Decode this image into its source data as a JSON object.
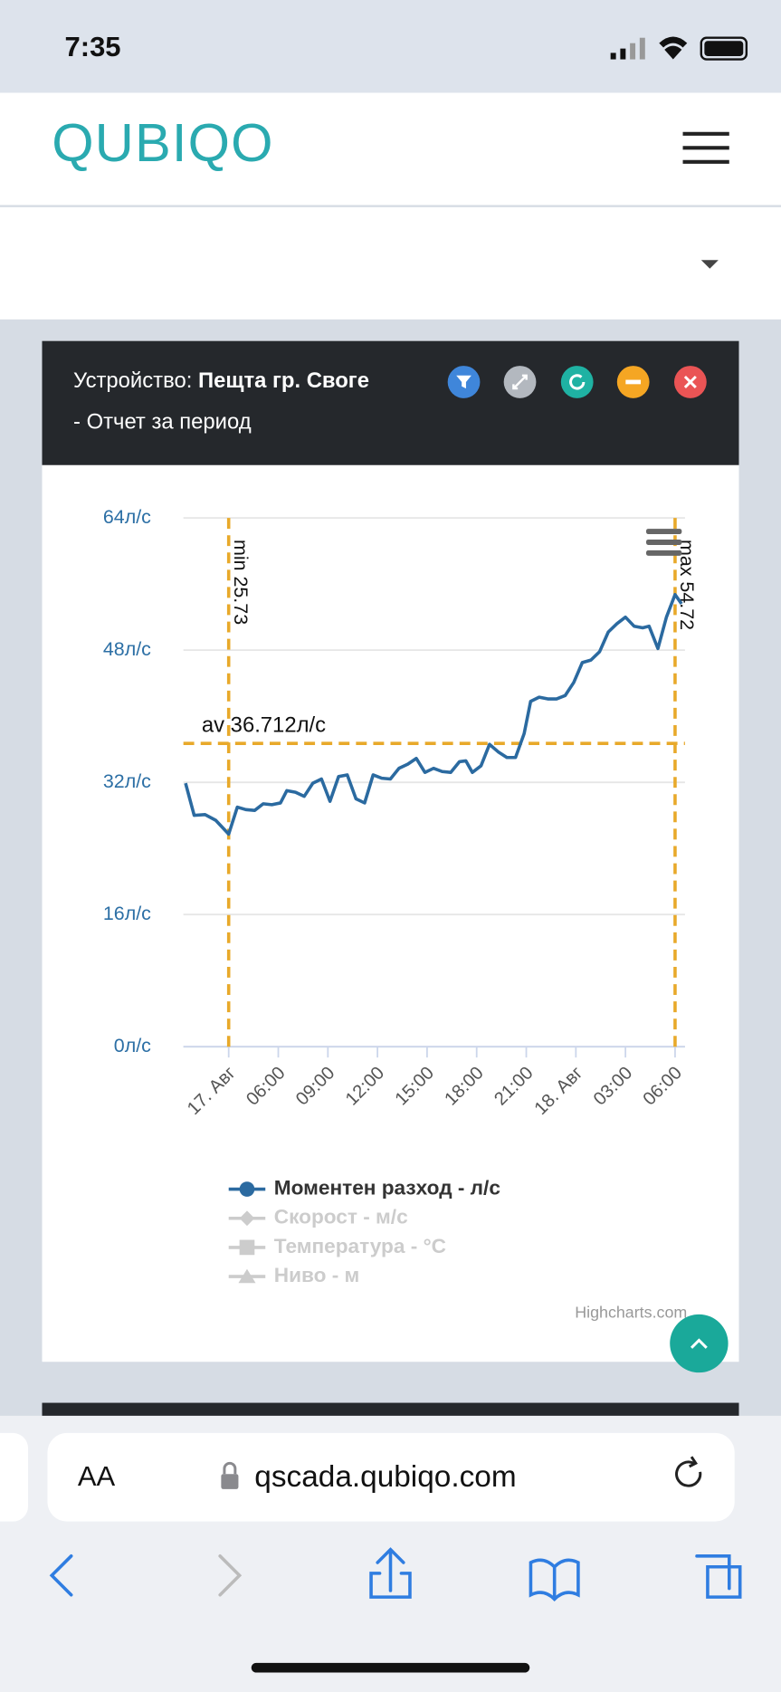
{
  "status_bar": {
    "time": "7:35"
  },
  "header": {
    "logo": "QUBIQO"
  },
  "panel": {
    "device_label": "Устройство:",
    "device_name": "Пещта гр. Своге",
    "subtitle": "- Отчет за период"
  },
  "browser": {
    "text_size": "AA",
    "url": "qscada.qubiqo.com"
  },
  "chart_data": {
    "type": "line",
    "credits": "Highcharts.com",
    "xlim": [
      -2.74,
      27.6
    ],
    "xticks": [
      {
        "value": 0,
        "label": "17. Авг"
      },
      {
        "value": 3,
        "label": "06:00"
      },
      {
        "value": 6,
        "label": "09:00"
      },
      {
        "value": 9,
        "label": "12:00"
      },
      {
        "value": 12,
        "label": "15:00"
      },
      {
        "value": 15,
        "label": "18:00"
      },
      {
        "value": 18,
        "label": "21:00"
      },
      {
        "value": 21,
        "label": "18. Авг"
      },
      {
        "value": 24,
        "label": "03:00"
      },
      {
        "value": 27,
        "label": "06:00"
      }
    ],
    "ylim": [
      0,
      64
    ],
    "yticks": [
      {
        "value": 0,
        "label": "0л/с"
      },
      {
        "value": 16,
        "label": "16л/с"
      },
      {
        "value": 32,
        "label": "32л/с"
      },
      {
        "value": 48,
        "label": "48л/с"
      },
      {
        "value": 64,
        "label": "64л/с"
      }
    ],
    "grid": true,
    "plot_lines": [
      {
        "label": "min 25.73",
        "value": 25.73,
        "x": 0
      },
      {
        "label": "max 54.72",
        "value": 54.72,
        "x": 27
      },
      {
        "label": "av 36.712л/с",
        "value": 36.712
      }
    ],
    "plot_line_color": "#e8a92a",
    "series": [
      {
        "name": "Моментен разход - л/с",
        "color": "#2b6aa0",
        "visible": true,
        "x": [
          -2.61,
          -2.09,
          -1.43,
          -0.78,
          0,
          0.52,
          1.04,
          1.57,
          2.09,
          2.61,
          3.13,
          3.52,
          4.04,
          4.57,
          5.09,
          5.61,
          6.13,
          6.65,
          7.17,
          7.7,
          8.22,
          8.74,
          9.26,
          9.78,
          10.3,
          10.83,
          11.35,
          11.87,
          12.39,
          12.91,
          13.43,
          13.96,
          14.35,
          14.74,
          15.26,
          15.78,
          16.3,
          16.83,
          17.35,
          17.87,
          18.26,
          18.78,
          19.3,
          19.83,
          20.35,
          20.87,
          21.39,
          21.91,
          22.43,
          22.96,
          23.48,
          24,
          24.52,
          25.04,
          25.43,
          25.96,
          26.48,
          27,
          27.39
        ],
        "values": [
          31.9,
          28.0,
          28.1,
          27.4,
          25.73,
          29.0,
          28.7,
          28.6,
          29.4,
          29.3,
          29.5,
          31.0,
          30.8,
          30.3,
          31.9,
          32.4,
          29.7,
          32.7,
          32.9,
          30.0,
          29.5,
          32.9,
          32.5,
          32.4,
          33.7,
          34.2,
          34.9,
          33.2,
          33.7,
          33.3,
          33.2,
          34.5,
          34.6,
          33.2,
          34.0,
          36.6,
          35.7,
          35.0,
          35.0,
          37.9,
          41.8,
          42.3,
          42.1,
          42.1,
          42.5,
          44.1,
          46.5,
          46.8,
          47.8,
          50.2,
          51.2,
          52.0,
          50.9,
          50.7,
          50.9,
          48.2,
          52.0,
          54.72,
          53.6
        ]
      },
      {
        "name": "Скорост - м/с",
        "color": "#cccccc",
        "visible": false
      },
      {
        "name": "Температура - °C",
        "color": "#cccccc",
        "visible": false
      },
      {
        "name": "Ниво - м",
        "color": "#cccccc",
        "visible": false
      }
    ]
  }
}
